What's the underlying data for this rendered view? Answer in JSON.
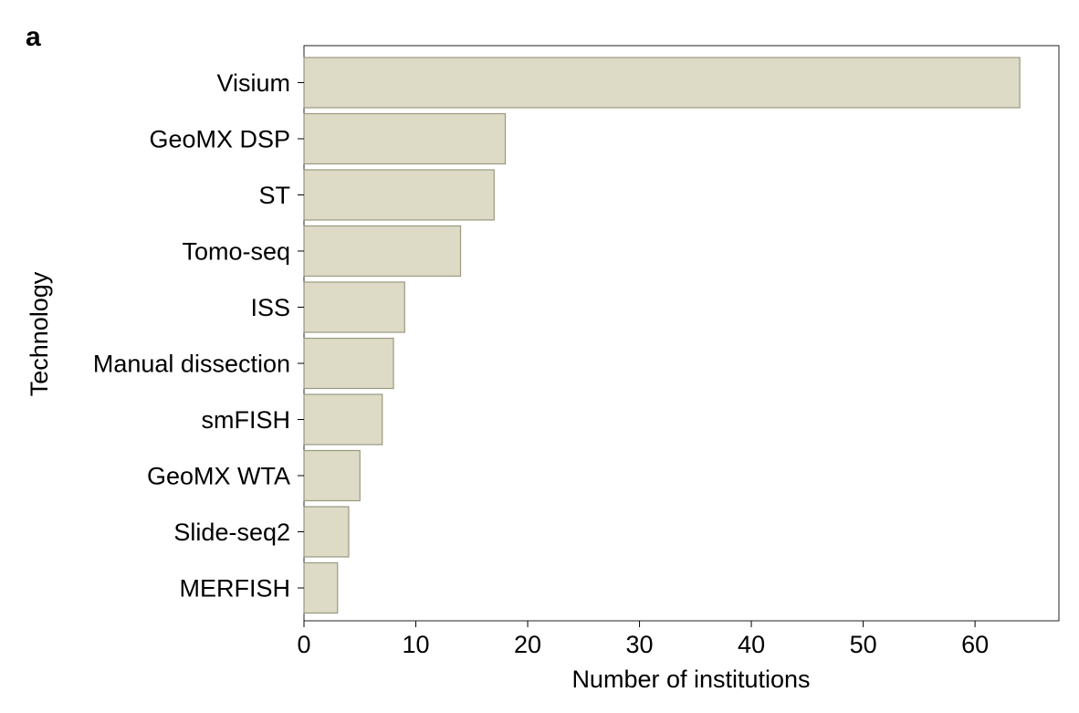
{
  "panel_label": "a",
  "colors": {
    "bar_fill": "#dddbc6",
    "bar_stroke": "#9b9880",
    "axis": "#000000",
    "frame": "#222222"
  },
  "chart_data": {
    "type": "bar",
    "orientation": "horizontal",
    "title": "",
    "xlabel": "Number of institutions",
    "ylabel": "Technology",
    "categories": [
      "Visium",
      "GeoMX DSP",
      "ST",
      "Tomo-seq",
      "ISS",
      "Manual dissection",
      "smFISH",
      "GeoMX WTA",
      "Slide-seq2",
      "MERFISH"
    ],
    "values": [
      64,
      18,
      17,
      14,
      9,
      8,
      7,
      5,
      4,
      3
    ],
    "xlim": [
      0,
      67.5
    ],
    "xticks": [
      0,
      10,
      20,
      30,
      40,
      50,
      60
    ],
    "grid": false,
    "legend": "none"
  }
}
